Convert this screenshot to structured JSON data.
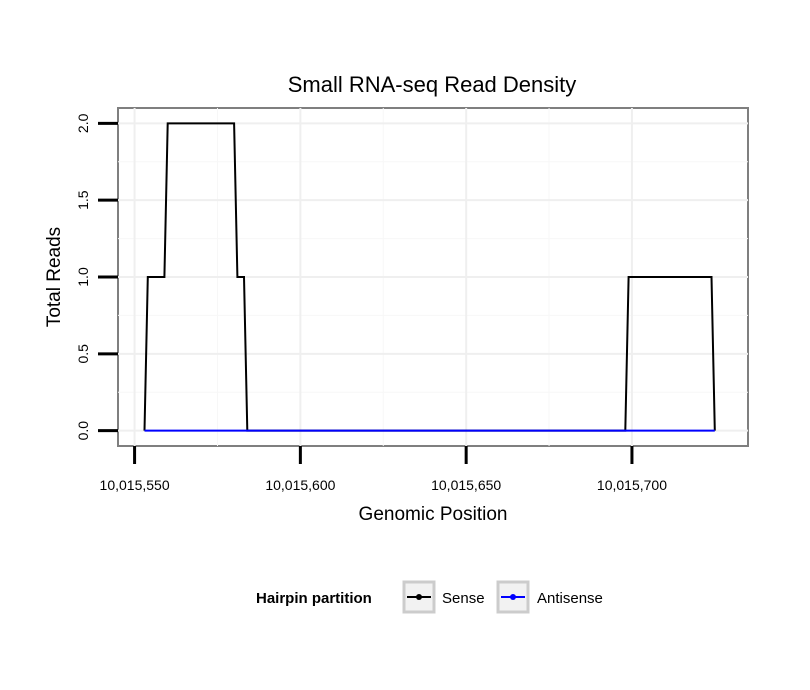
{
  "chart_data": {
    "type": "line",
    "title": "Small RNA-seq Read Density",
    "xlabel": "Genomic Position",
    "ylabel": "Total Reads",
    "xlim": [
      10015545,
      10015735
    ],
    "ylim": [
      -0.1,
      2.1
    ],
    "x_ticks": [
      10015550,
      10015600,
      10015650,
      10015700
    ],
    "x_tick_labels": [
      "10,015,550",
      "10,015,600",
      "10,015,650",
      "10,015,700"
    ],
    "y_ticks": [
      0.0,
      0.5,
      1.0,
      1.5,
      2.0
    ],
    "y_tick_labels": [
      "0.0",
      "0.5",
      "1.0",
      "1.5",
      "2.0"
    ],
    "grid": true,
    "legend": {
      "title": "Hairpin partition",
      "position": "bottom"
    },
    "series": [
      {
        "name": "Sense",
        "color": "#000000",
        "x": [
          10015553,
          10015554,
          10015559,
          10015560,
          10015580,
          10015581,
          10015583,
          10015584,
          10015698,
          10015699,
          10015724,
          10015725
        ],
        "y": [
          0,
          1,
          1,
          2,
          2,
          1,
          1,
          0,
          0,
          1,
          1,
          0
        ]
      },
      {
        "name": "Antisense",
        "color": "#0000ff",
        "x": [
          10015553,
          10015725
        ],
        "y": [
          0,
          0
        ]
      }
    ]
  }
}
